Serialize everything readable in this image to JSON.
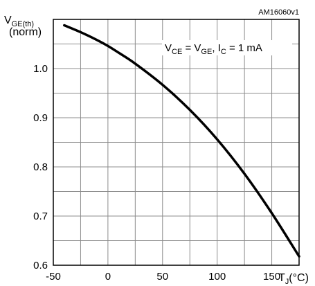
{
  "chart_data": {
    "type": "line",
    "code_label": "AM16060v1",
    "ylabel": {
      "main": "V",
      "sub": "GE(th)",
      "second_line": "(norm)"
    },
    "xlabel": {
      "main": "T",
      "sub": "J",
      "unit": "(°C)"
    },
    "annotation": [
      {
        "text": "V",
        "sub": false
      },
      {
        "text": "CE",
        "sub": true
      },
      {
        "text": " = V",
        "sub": false
      },
      {
        "text": "GE",
        "sub": true
      },
      {
        "text": ", I",
        "sub": false
      },
      {
        "text": "C",
        "sub": true
      },
      {
        "text": " = 1 mA",
        "sub": false
      }
    ],
    "xlim": [
      -50,
      175
    ],
    "ylim": [
      0.6,
      1.1
    ],
    "x_tick_values": [
      -50,
      0,
      50,
      100,
      150
    ],
    "x_tick_labels": [
      "-50",
      "0",
      "50",
      "100",
      "150"
    ],
    "y_tick_values": [
      0.6,
      0.7,
      0.8,
      0.9,
      1.0
    ],
    "y_tick_labels": [
      "0.6",
      "0.7",
      "0.8",
      "0.9",
      "1.0"
    ],
    "x_minor_step": 25,
    "y_minor_step": 0.05,
    "grid": true,
    "series": [
      {
        "x": [
          -40,
          -25,
          -10,
          0,
          10,
          25,
          50,
          75,
          100,
          125,
          150,
          175
        ],
        "y": [
          1.088,
          1.074,
          1.058,
          1.046,
          1.032,
          1.01,
          0.967,
          0.916,
          0.856,
          0.786,
          0.706,
          0.618
        ]
      }
    ],
    "colors": {
      "line": "#000000",
      "grid": "#8c8c8c",
      "frame": "#000000"
    }
  }
}
